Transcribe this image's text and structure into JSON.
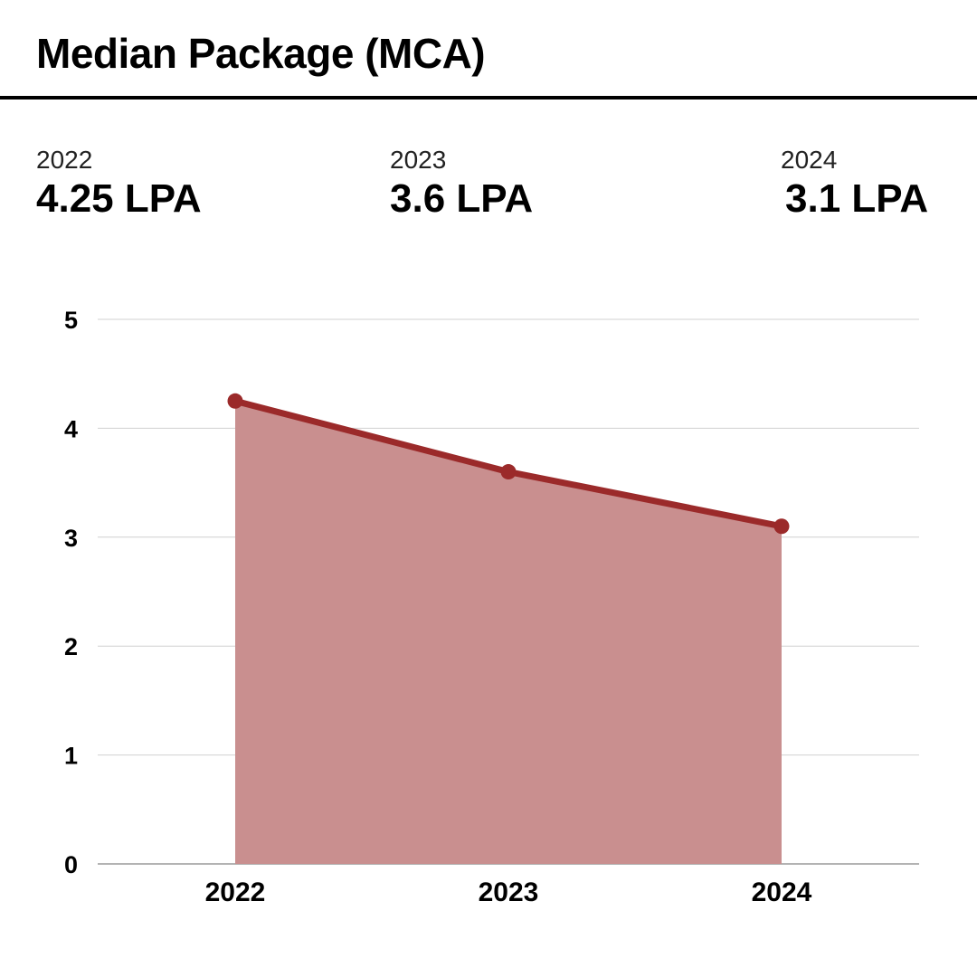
{
  "page": {
    "title": "Median Package (MCA)"
  },
  "stats": [
    {
      "year": "2022",
      "value": "4.25 LPA"
    },
    {
      "year": "2023",
      "value": "3.6 LPA"
    },
    {
      "year": "2024",
      "value": "3.1 LPA"
    }
  ],
  "chart_data": {
    "type": "area",
    "categories": [
      "2022",
      "2023",
      "2024"
    ],
    "series": [
      {
        "values": [
          4.25,
          3.6,
          3.1
        ],
        "color": "#9b2a2a",
        "fill": "#c98f8f"
      }
    ],
    "title": "",
    "xlabel": "",
    "ylabel": "",
    "ylim": [
      0,
      5
    ],
    "yticks": [
      0,
      1,
      2,
      3,
      4,
      5
    ],
    "grid": true,
    "legend": "none"
  }
}
